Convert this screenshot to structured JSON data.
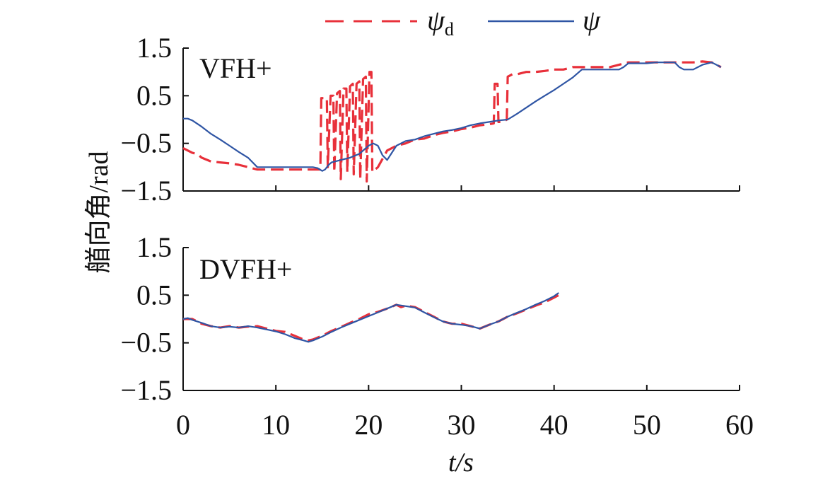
{
  "chart_data": [
    {
      "type": "line",
      "panel_label": "VFH+",
      "ylabel": "艏向角/rad",
      "xlabel": "t/s",
      "xlim": [
        0,
        60
      ],
      "ylim": [
        -1.5,
        1.5
      ],
      "yticks": [
        "1.5",
        "0.5",
        "−0.5",
        "−1.5"
      ],
      "xticks": [
        "0",
        "10",
        "20",
        "30",
        "40",
        "50",
        "60"
      ],
      "grid": false,
      "legend_position": "top-center",
      "series": [
        {
          "name": "ψd",
          "name_symbol": "ψ",
          "name_sub": "d",
          "color": "#e8303a",
          "style": "dashed",
          "x": [
            0,
            1,
            1.5,
            2,
            3,
            4,
            5,
            6,
            7,
            8,
            9,
            10,
            11,
            12,
            13,
            14,
            14.8,
            14.9,
            15.2,
            15.5,
            15.6,
            15.9,
            16.2,
            16.3,
            16.6,
            16.9,
            17.0,
            17.3,
            17.6,
            17.7,
            18.0,
            18.3,
            18.4,
            18.7,
            19.0,
            19.1,
            19.4,
            19.7,
            19.8,
            20.1,
            20.3,
            20.4,
            21,
            22,
            23,
            24,
            25,
            26,
            27,
            28,
            29,
            30,
            31,
            32,
            33,
            33.5,
            33.6,
            33.9,
            34.0,
            34.5,
            34.9,
            35.0,
            35.5,
            36,
            37,
            38,
            39,
            40,
            41,
            42,
            43,
            44,
            45,
            46,
            47,
            48,
            49,
            50,
            51,
            52,
            53,
            54,
            55,
            56,
            57,
            58
          ],
          "y": [
            -0.6,
            -0.7,
            -0.72,
            -0.8,
            -0.88,
            -0.9,
            -0.92,
            -0.95,
            -1.0,
            -1.05,
            -1.05,
            -1.05,
            -1.05,
            -1.05,
            -1.05,
            -1.05,
            -1.05,
            0.45,
            0.45,
            0.45,
            -1.0,
            0.5,
            0.5,
            -1.1,
            0.55,
            0.6,
            -1.25,
            0.65,
            0.65,
            -1.1,
            0.7,
            0.75,
            -1.15,
            0.75,
            0.8,
            -1.25,
            0.85,
            0.9,
            -1.3,
            1.0,
            1.0,
            -1.1,
            -1.0,
            -0.65,
            -0.55,
            -0.5,
            -0.42,
            -0.4,
            -0.33,
            -0.28,
            -0.25,
            -0.2,
            -0.17,
            -0.12,
            -0.1,
            -0.08,
            0.75,
            0.75,
            -0.05,
            -0.05,
            0.0,
            0.9,
            0.95,
            0.95,
            1.0,
            1.0,
            1.02,
            1.05,
            1.05,
            1.1,
            1.1,
            1.1,
            1.1,
            1.1,
            1.15,
            1.2,
            1.2,
            1.2,
            1.2,
            1.2,
            1.2,
            1.2,
            1.2,
            1.22,
            1.2,
            1.1
          ]
        },
        {
          "name": "ψ",
          "name_symbol": "ψ",
          "name_sub": "",
          "color": "#2f55a4",
          "style": "solid",
          "x": [
            0,
            0.5,
            1,
            2,
            3,
            4,
            5,
            6,
            7,
            8,
            9,
            10,
            11,
            12,
            13,
            14,
            14.5,
            15,
            15.3,
            15.7,
            16,
            17,
            18,
            19,
            20,
            20.5,
            21,
            21.5,
            22,
            22.5,
            23,
            24,
            25,
            26,
            27,
            28,
            29,
            30,
            31,
            32,
            33,
            34,
            35,
            36,
            37,
            38,
            39,
            40,
            41,
            42,
            43,
            44,
            45,
            46,
            47,
            47.5,
            48,
            49,
            50,
            51,
            52,
            53,
            53.5,
            54,
            55,
            56,
            57,
            58
          ],
          "y": [
            0.02,
            0.02,
            -0.02,
            -0.15,
            -0.3,
            -0.42,
            -0.55,
            -0.68,
            -0.8,
            -1.0,
            -1.0,
            -1.0,
            -1.0,
            -1.0,
            -1.0,
            -1.0,
            -1.02,
            -1.08,
            -1.05,
            -0.95,
            -0.9,
            -0.85,
            -0.8,
            -0.72,
            -0.55,
            -0.5,
            -0.55,
            -0.75,
            -0.85,
            -0.7,
            -0.55,
            -0.45,
            -0.42,
            -0.35,
            -0.3,
            -0.25,
            -0.22,
            -0.18,
            -0.12,
            -0.08,
            -0.05,
            -0.02,
            0.0,
            0.12,
            0.25,
            0.38,
            0.5,
            0.62,
            0.75,
            0.88,
            1.05,
            1.05,
            1.05,
            1.05,
            1.05,
            1.1,
            1.18,
            1.18,
            1.18,
            1.2,
            1.2,
            1.2,
            1.1,
            1.05,
            1.05,
            1.15,
            1.2,
            1.1
          ]
        }
      ]
    },
    {
      "type": "line",
      "panel_label": "DVFH+",
      "xlim": [
        0,
        60
      ],
      "ylim": [
        -1.5,
        1.5
      ],
      "yticks": [
        "1.5",
        "0.5",
        "−0.5",
        "−1.5"
      ],
      "grid": false,
      "series": [
        {
          "name": "ψd",
          "color": "#e8303a",
          "style": "dashed",
          "x": [
            0,
            1,
            2,
            3,
            4,
            5,
            6,
            7,
            8,
            9,
            10,
            11,
            12,
            13,
            13.5,
            14,
            15,
            16,
            17,
            18,
            19,
            20,
            21,
            22,
            23,
            23.5,
            24,
            25,
            26,
            27,
            28,
            29,
            30,
            31,
            32,
            33,
            34,
            35,
            36,
            37,
            38,
            39,
            40,
            40.5
          ],
          "y": [
            0.0,
            0.0,
            -0.1,
            -0.15,
            -0.18,
            -0.15,
            -0.18,
            -0.16,
            -0.15,
            -0.2,
            -0.25,
            -0.27,
            -0.35,
            -0.43,
            -0.45,
            -0.43,
            -0.35,
            -0.25,
            -0.17,
            -0.08,
            0.0,
            0.1,
            0.15,
            0.22,
            0.3,
            0.25,
            0.28,
            0.25,
            0.15,
            0.05,
            -0.05,
            -0.1,
            -0.1,
            -0.15,
            -0.2,
            -0.12,
            -0.05,
            0.05,
            0.12,
            0.2,
            0.28,
            0.35,
            0.45,
            0.5
          ]
        },
        {
          "name": "ψ",
          "color": "#2f55a4",
          "style": "solid",
          "x": [
            0,
            0.5,
            1,
            2,
            3,
            4,
            5,
            6,
            7,
            8,
            9,
            10,
            11,
            12,
            13,
            13.5,
            14,
            15,
            16,
            17,
            18,
            19,
            20,
            21,
            22,
            23,
            24,
            25,
            26,
            27,
            28,
            29,
            30,
            31,
            32,
            33,
            34,
            35,
            36,
            37,
            38,
            39,
            40,
            40.5
          ],
          "y": [
            0.0,
            0.02,
            -0.02,
            -0.08,
            -0.15,
            -0.18,
            -0.16,
            -0.18,
            -0.15,
            -0.18,
            -0.22,
            -0.26,
            -0.32,
            -0.4,
            -0.45,
            -0.48,
            -0.45,
            -0.37,
            -0.27,
            -0.18,
            -0.1,
            -0.02,
            0.06,
            0.14,
            0.22,
            0.3,
            0.27,
            0.24,
            0.14,
            0.04,
            -0.05,
            -0.1,
            -0.12,
            -0.15,
            -0.2,
            -0.12,
            -0.05,
            0.05,
            0.13,
            0.21,
            0.3,
            0.38,
            0.48,
            0.55
          ]
        }
      ]
    }
  ]
}
